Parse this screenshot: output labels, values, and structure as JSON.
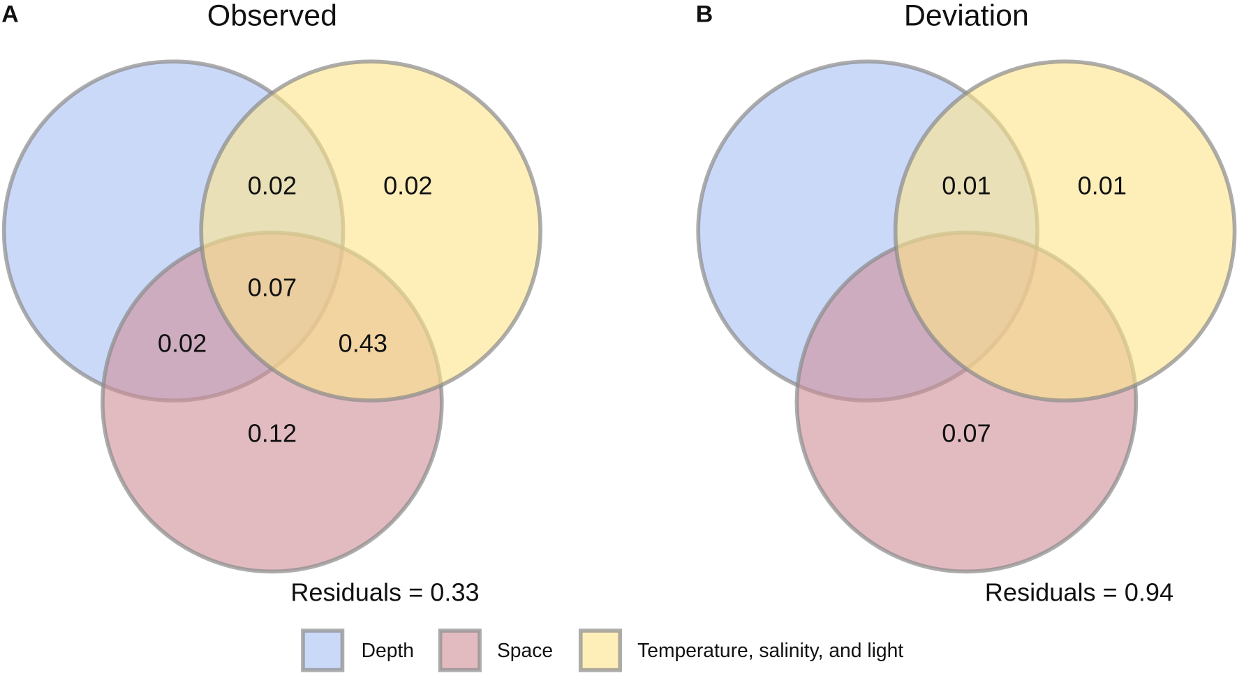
{
  "chart_data": [
    {
      "type": "venn",
      "label": "A",
      "title": "Observed",
      "series": [
        {
          "name": "Depth",
          "color": "#a9bff5"
        },
        {
          "name": "Space",
          "color": "#cf8e98"
        },
        {
          "name": "Temperature, salinity, and light",
          "color": "#fde48a"
        }
      ],
      "regions": {
        "depth_temp": 0.02,
        "temp": 0.02,
        "all": 0.07,
        "depth_space": 0.02,
        "space_temp": 0.43,
        "space": 0.12
      },
      "annotation": "Residuals = 0.33"
    },
    {
      "type": "venn",
      "label": "B",
      "title": "Deviation",
      "series": [
        {
          "name": "Depth",
          "color": "#a9bff5"
        },
        {
          "name": "Space",
          "color": "#cf8e98"
        },
        {
          "name": "Temperature, salinity, and light",
          "color": "#fde48a"
        }
      ],
      "regions": {
        "depth_temp": 0.01,
        "temp": 0.01,
        "space": 0.07
      },
      "annotation": "Residuals = 0.94"
    }
  ]
}
